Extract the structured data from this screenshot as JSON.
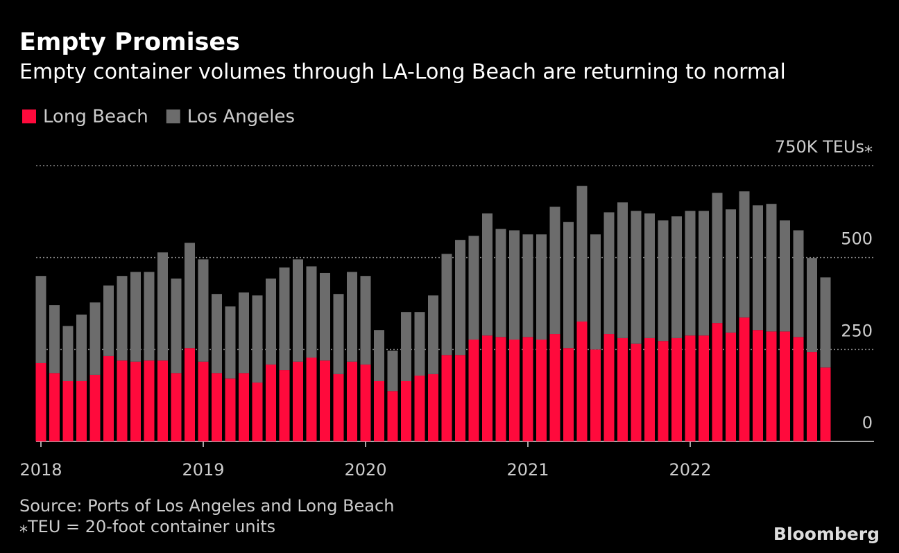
{
  "chart_data": {
    "type": "stacked_bar",
    "title": "Empty Promises",
    "subtitle": "Empty container volumes through LA-Long Beach are returning to normal",
    "source": "Source: Ports of Los Angeles and Long Beach",
    "note": "⁎TEU = 20-foot container units",
    "branding": "Bloomberg",
    "legend": "top-left",
    "categories": [
      "2018",
      null,
      null,
      null,
      null,
      null,
      null,
      null,
      null,
      null,
      null,
      null,
      "2019",
      null,
      null,
      null,
      null,
      null,
      null,
      null,
      null,
      null,
      null,
      null,
      "2020",
      null,
      null,
      null,
      null,
      null,
      null,
      null,
      null,
      null,
      null,
      null,
      "2021",
      null,
      null,
      null,
      null,
      null,
      null,
      null,
      null,
      null,
      null,
      null,
      "2022",
      null,
      null,
      null,
      null,
      null,
      null,
      null,
      null,
      null,
      null
    ],
    "series": [
      {
        "name": "Long Beach",
        "color": "#ff0a3c",
        "values": [
          213,
          186,
          164,
          164,
          181,
          232,
          220,
          217,
          220,
          220,
          186,
          254,
          217,
          186,
          171,
          186,
          160,
          209,
          194,
          217,
          228,
          220,
          183,
          217,
          209,
          164,
          137,
          164,
          179,
          183,
          235,
          235,
          277,
          288,
          284,
          277,
          284,
          277,
          292,
          254,
          326,
          250,
          292,
          281,
          266,
          281,
          273,
          281,
          288,
          288,
          322,
          296,
          337,
          303,
          299,
          299,
          284,
          243,
          201
        ]
      },
      {
        "name": "Los Angeles",
        "color": "#6c6c6c",
        "values": [
          237,
          185,
          150,
          181,
          197,
          192,
          230,
          244,
          241,
          294,
          257,
          286,
          278,
          215,
          196,
          219,
          237,
          234,
          279,
          278,
          248,
          238,
          218,
          244,
          241,
          139,
          110,
          188,
          173,
          214,
          275,
          313,
          282,
          332,
          294,
          297,
          279,
          286,
          346,
          343,
          369,
          313,
          331,
          369,
          361,
          339,
          328,
          331,
          339,
          339,
          354,
          335,
          343,
          339,
          347,
          302,
          290,
          256,
          245
        ]
      }
    ],
    "ylim": [
      0,
      750
    ],
    "yticks": [
      0,
      250,
      500,
      {
        "value": 750,
        "label": "750K TEUs⁎"
      }
    ],
    "grid": true
  }
}
